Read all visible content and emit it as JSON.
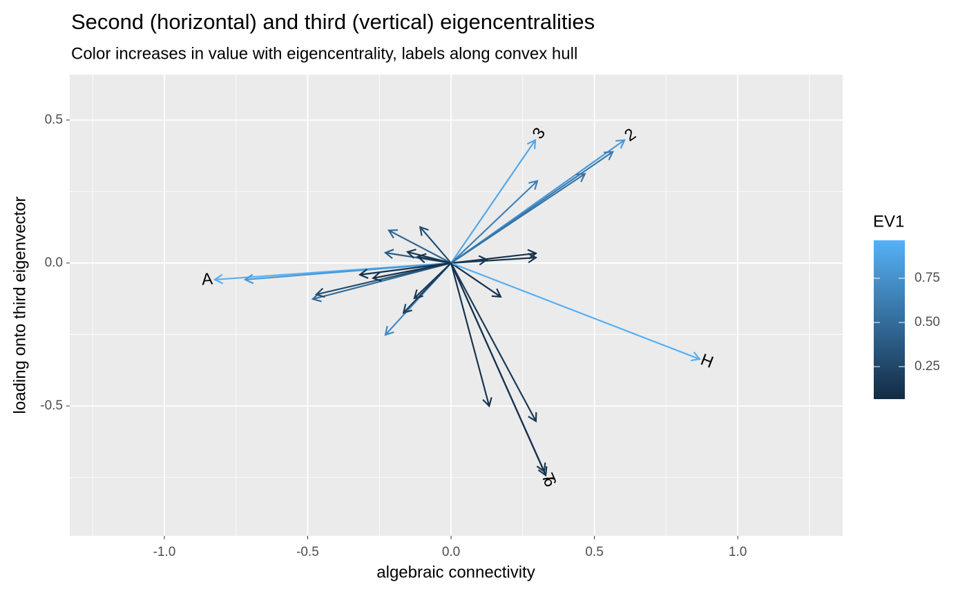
{
  "chart_data": {
    "type": "arrows",
    "title": "Second (horizontal) and third (vertical) eigencentralities",
    "subtitle": "Color increases in value with eigencentrality, labels along convex hull",
    "xlabel": "algebraic connectivity",
    "ylabel": "loading onto third eigenvector",
    "xlim": [
      -1.33,
      1.366
    ],
    "ylim": [
      -0.954,
      0.659
    ],
    "xticks": [
      {
        "value": -1,
        "label": "-1.0"
      },
      {
        "value": -0.5,
        "label": "-0.5"
      },
      {
        "value": 0,
        "label": "0.0"
      },
      {
        "value": 0.5,
        "label": "0.5"
      },
      {
        "value": 1,
        "label": "1.0"
      }
    ],
    "yticks": [
      -0.5,
      {
        "value": 0,
        "label": "0.0"
      },
      0.5
    ],
    "xminor": [
      -1.25,
      -0.75,
      -0.25,
      0.25,
      0.75,
      1.25
    ],
    "yminor": [
      -0.75,
      -0.25,
      0.25
    ],
    "grid": true,
    "x": [
      -0.824,
      -0.718,
      -0.482,
      -0.47,
      -0.318,
      -0.272,
      -0.229,
      -0.166,
      -0.128,
      -0.217,
      -0.108,
      -0.229,
      -0.152,
      -0.116,
      0.294,
      0.301,
      0.605,
      0.564,
      0.467,
      0.296,
      0.296,
      0.125,
      0.173,
      0.867,
      0.133,
      0.296,
      0.325,
      0.33
    ],
    "y": [
      -0.058,
      -0.058,
      -0.126,
      -0.11,
      -0.041,
      -0.053,
      -0.251,
      -0.174,
      -0.123,
      0.114,
      0.126,
      0.036,
      0.039,
      0.022,
      0.43,
      0.287,
      0.43,
      0.389,
      0.312,
      0.034,
      0.019,
      0.012,
      -0.118,
      -0.336,
      -0.5,
      -0.553,
      -0.729,
      -0.742
    ],
    "ev1": [
      0.95,
      0.8,
      0.5,
      0.3,
      0.1,
      0.12,
      0.7,
      0.2,
      0.15,
      0.45,
      0.3,
      0.4,
      0.15,
      0.12,
      0.9,
      0.65,
      0.8,
      0.6,
      0.55,
      0.1,
      0.12,
      0.15,
      0.12,
      0.95,
      0.12,
      0.15,
      0.15,
      0.12
    ],
    "labels": [
      "A",
      null,
      null,
      null,
      null,
      null,
      null,
      null,
      null,
      null,
      null,
      null,
      null,
      null,
      "3",
      null,
      "2",
      null,
      null,
      null,
      null,
      null,
      null,
      "H",
      null,
      null,
      "7",
      "6"
    ],
    "legend": {
      "title": "EV1",
      "low_color": "#132B43",
      "high_color": "#56B1F7",
      "colorlim": [
        0.066,
        0.965
      ],
      "ticks": [
        0.25,
        {
          "value": 0.5,
          "label": "0.50"
        },
        0.75
      ]
    }
  }
}
